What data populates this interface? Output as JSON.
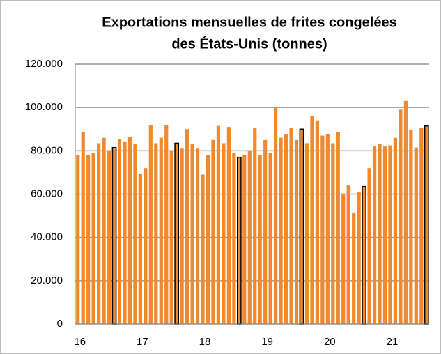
{
  "chart_data": {
    "type": "bar",
    "title": [
      "Exportations mensuelles de frites congelées",
      "des États-Unis (tonnes)"
    ],
    "categories": [
      "16",
      null,
      null,
      null,
      null,
      null,
      null,
      null,
      null,
      null,
      null,
      null,
      "17",
      null,
      null,
      null,
      null,
      null,
      null,
      null,
      null,
      null,
      null,
      null,
      "18",
      null,
      null,
      null,
      null,
      null,
      null,
      null,
      null,
      null,
      null,
      null,
      "19",
      null,
      null,
      null,
      null,
      null,
      null,
      null,
      null,
      null,
      null,
      null,
      "20",
      null,
      null,
      null,
      null,
      null,
      null,
      null,
      null,
      null,
      null,
      null,
      "21",
      null,
      null,
      null,
      null,
      null,
      null,
      null
    ],
    "values": [
      78000,
      88500,
      78000,
      79000,
      83500,
      86000,
      80000,
      81500,
      85500,
      84000,
      86500,
      83000,
      69500,
      72000,
      92000,
      83500,
      86000,
      92000,
      80000,
      83500,
      81000,
      90000,
      83000,
      81000,
      69000,
      78000,
      85000,
      91500,
      83500,
      91000,
      79000,
      77000,
      78000,
      80000,
      90500,
      78000,
      85000,
      79000,
      100000,
      86000,
      87500,
      90500,
      85000,
      90000,
      83500,
      96000,
      94000,
      87000,
      87500,
      83500,
      88500,
      60000,
      64000,
      51500,
      61000,
      63500,
      72000,
      82000,
      83000,
      82000,
      82500,
      86000,
      99000,
      103000,
      89500,
      81500,
      90500,
      91500
    ],
    "color": "#f0892d",
    "edgecolors": [
      null,
      null,
      null,
      null,
      null,
      null,
      null,
      "#000000",
      null,
      null,
      null,
      null,
      null,
      null,
      null,
      null,
      null,
      null,
      null,
      "#000000",
      null,
      null,
      null,
      null,
      null,
      null,
      null,
      null,
      null,
      null,
      null,
      "#000000",
      null,
      null,
      null,
      null,
      null,
      null,
      null,
      null,
      null,
      null,
      null,
      "#000000",
      null,
      null,
      null,
      null,
      null,
      null,
      null,
      null,
      null,
      null,
      null,
      "#000000",
      null,
      null,
      null,
      null,
      null,
      null,
      null,
      null,
      null,
      null,
      null,
      "#000000"
    ],
    "ylim": [
      0,
      120000
    ],
    "yticks": [
      0,
      {
        "value": 20000,
        "label": "20.000"
      },
      {
        "value": 40000,
        "label": "40.000"
      },
      {
        "value": 60000,
        "label": "60.000"
      },
      {
        "value": 80000,
        "label": "80.000"
      },
      {
        "value": 100000,
        "label": "100.000"
      },
      {
        "value": 120000,
        "label": "120.000"
      }
    ],
    "grid": true
  }
}
